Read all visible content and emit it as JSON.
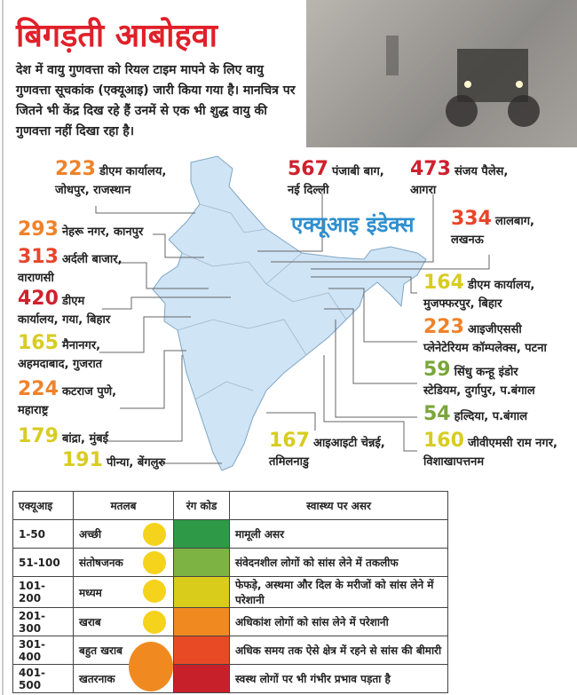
{
  "title": "बिगड़ती आबोहवा",
  "intro": "देश में वायु गुणवत्ता को रियल टाइम मापने के लिए वायु गुणवत्ता सूचकांक (एक्यूआइ) जारी किया गया है। मानचित्र पर जितने भी केंद्र दिख रहे हैं उनमें से एक भी शुद्ध वायु की गुणवत्ता नहीं दिखा रहा है।",
  "map_title": "एक्यूआइ इंडेक्स",
  "colors": {
    "title": "#e0202a",
    "map": "#cfe4f5",
    "index_title": "#2e8fcf"
  },
  "stations": [
    {
      "value": "223",
      "place": "डीएम कार्यालय,",
      "place2": "जोधपुर, राजस्थान",
      "color": "#f0822a"
    },
    {
      "value": "293",
      "place": "नेहरू नगर, कानपुर",
      "place2": "",
      "color": "#f0822a"
    },
    {
      "value": "313",
      "place": "अर्दली बाजार,",
      "place2": "वाराणसी",
      "color": "#e8452a"
    },
    {
      "value": "420",
      "place": "डीएम",
      "place2": "कार्यालय, गया, बिहार",
      "color": "#d0202e"
    },
    {
      "value": "165",
      "place": "मैनानगर,",
      "place2": "अहमदाबाद, गुजरात",
      "color": "#d8cc22"
    },
    {
      "value": "224",
      "place": "कटराज पुणे,",
      "place2": "महाराष्ट्र",
      "color": "#f0822a"
    },
    {
      "value": "179",
      "place": "बांद्रा, मुंबई",
      "place2": "",
      "color": "#d8cc22"
    },
    {
      "value": "191",
      "place": "पीन्या, बेंगलुरु",
      "place2": "",
      "color": "#d8cc22"
    },
    {
      "value": "567",
      "place": "पंजाबी बाग,",
      "place2": "नई दिल्ली",
      "color": "#d0202e"
    },
    {
      "value": "473",
      "place": "संजय पैलेस,",
      "place2": "आगरा",
      "color": "#d0202e"
    },
    {
      "value": "334",
      "place": "लालबाग,",
      "place2": "लखनऊ",
      "color": "#e8452a"
    },
    {
      "value": "164",
      "place": "डीएम कार्यालय,",
      "place2": "मुजफ्फरपुर, बिहार",
      "color": "#d8cc22"
    },
    {
      "value": "223",
      "place": "आइजीएससी",
      "place2": "प्लेनेटेरियम कॉम्पलेक्स, पटना",
      "color": "#f0822a"
    },
    {
      "value": "59",
      "place": "सिंधु कन्हू इंडोर",
      "place2": "स्टेडियम, दुर्गापुर, प.बंगाल",
      "color": "#7aa63a"
    },
    {
      "value": "54",
      "place": "हल्दिया, प.बंगाल",
      "place2": "",
      "color": "#7aa63a"
    },
    {
      "value": "160",
      "place": "जीवीएमसी राम नगर,",
      "place2": "विशाखापत्तनम",
      "color": "#d8cc22"
    },
    {
      "value": "167",
      "place": "आइआइटी चेन्नई,",
      "place2": "तमिलनाडु",
      "color": "#d8cc22"
    }
  ],
  "table": {
    "headers": [
      "एक्यूआइ",
      "मतलब",
      "रंग कोड",
      "स्वास्थ्य पर असर"
    ],
    "rows": [
      {
        "range": "1-50",
        "meaning": "अच्छी",
        "color": "#2e9a48",
        "effect": "मामूली असर",
        "icon": "happy-face-icon"
      },
      {
        "range": "51-100",
        "meaning": "संतोषजनक",
        "color": "#7cb342",
        "effect": "संवेदनशील लोगों को सांस लेने में तकलीफ",
        "icon": "content-face-icon"
      },
      {
        "range": "101-200",
        "meaning": "मध्यम",
        "color": "#d9cc1a",
        "effect": "फेफड़े, अस्थमा और दिल के मरीजों को सांस लेने में परेशानी",
        "icon": "worried-face-icon"
      },
      {
        "range": "201-300",
        "meaning": "खराब",
        "color": "#f08a20",
        "effect": "अधिकांश लोगों को सांस लेने में परेशानी",
        "icon": "grimace-face-icon"
      },
      {
        "range": "301-400",
        "meaning": "बहुत खराब",
        "color": "#e84a25",
        "effect": "अधिक समय तक ऐसे क्षेत्र में रहने से सांस की बीमारी",
        "icon": "devil-face-icon"
      },
      {
        "range": "401-500",
        "meaning": "खतरनाक",
        "color": "#c8202a",
        "effect": "स्वस्थ लोगों पर भी गंभीर प्रभाव पड़ता है",
        "icon": "devil-face-icon"
      }
    ]
  }
}
